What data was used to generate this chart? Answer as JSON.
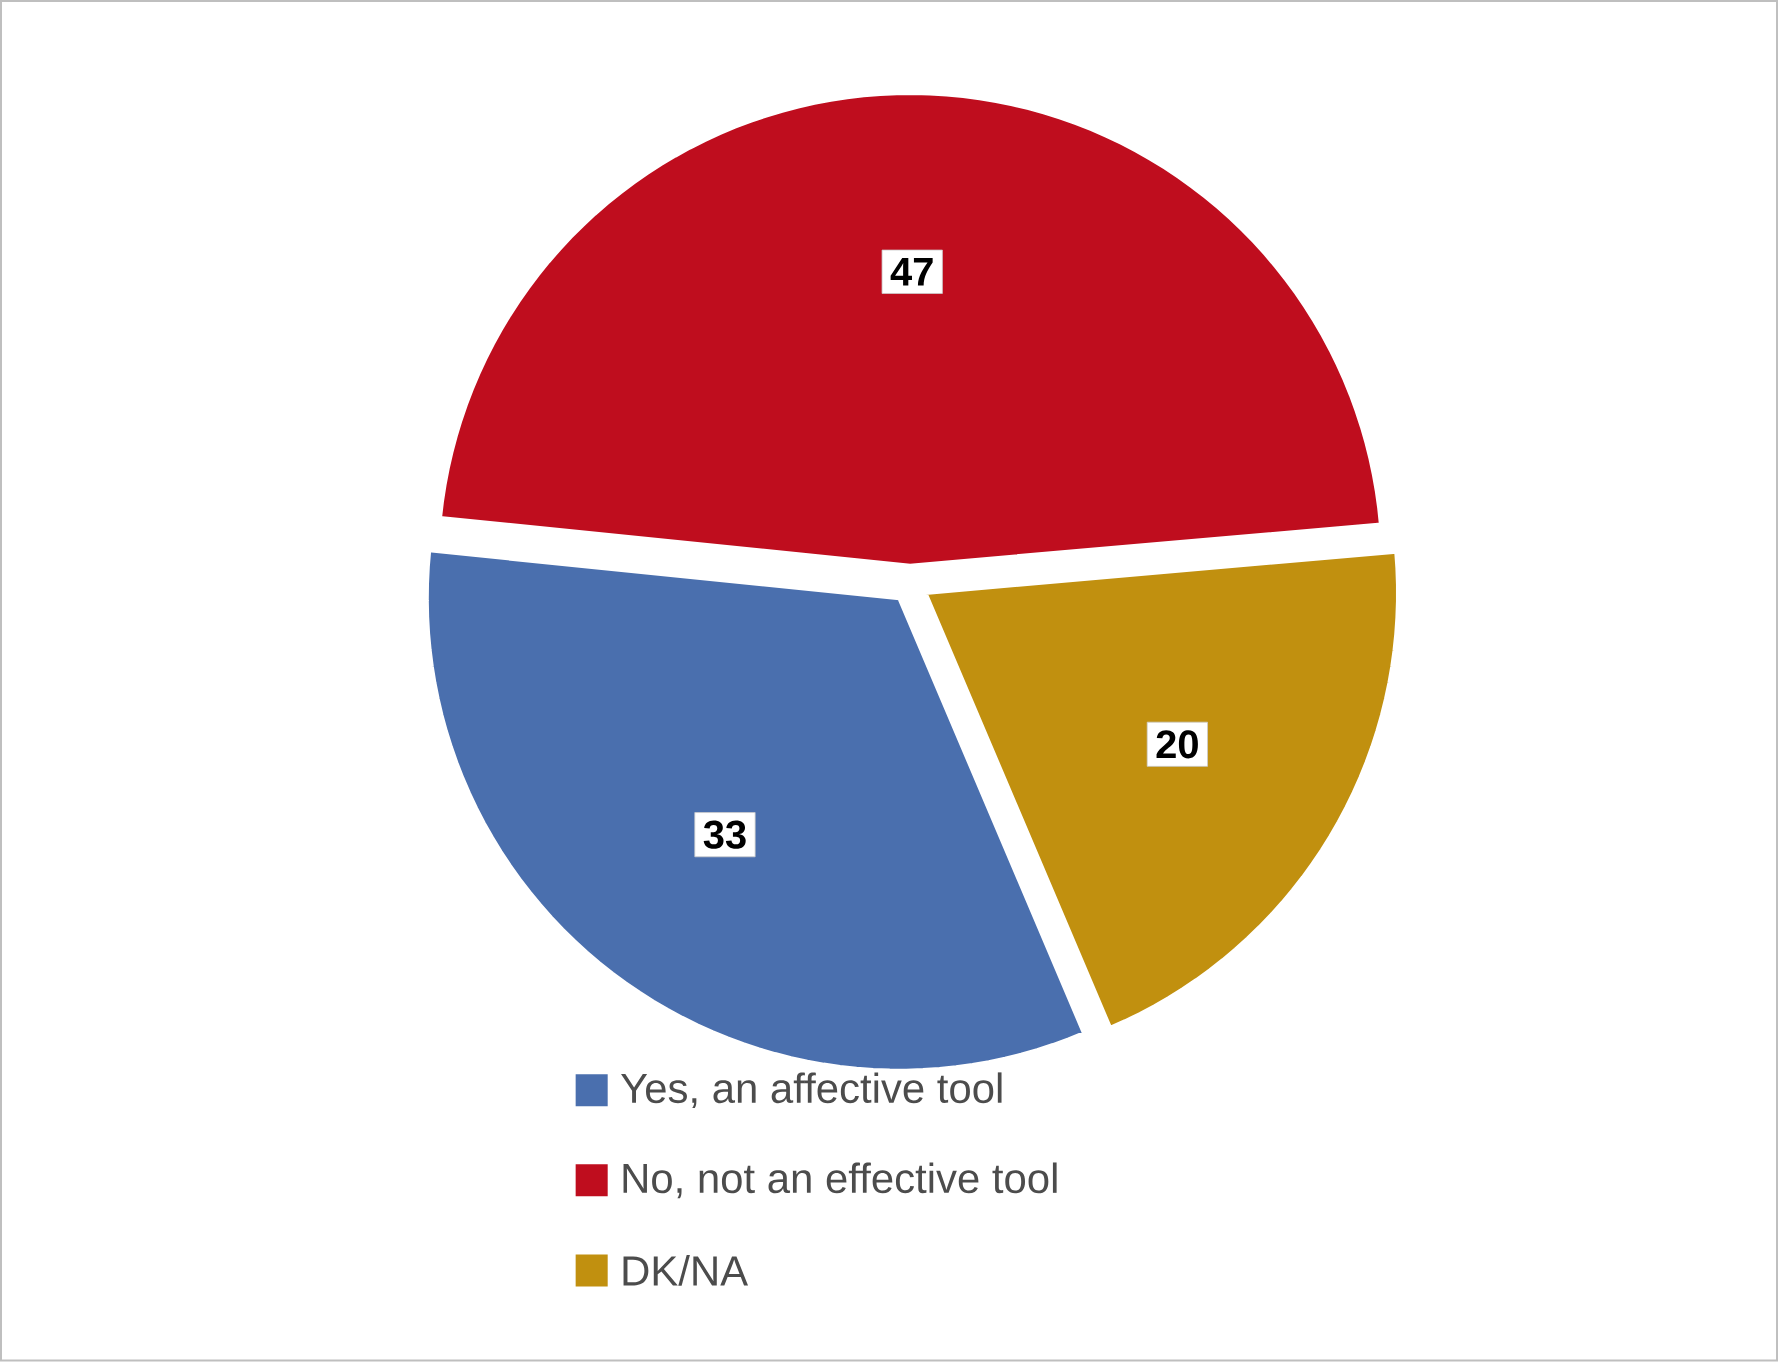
{
  "chart_data": {
    "type": "pie",
    "categories": [
      "Yes, an affective tool",
      "No, not an effective tool",
      "DK/NA"
    ],
    "values": [
      33,
      47,
      20
    ],
    "colors": [
      "#4a6fae",
      "#bf0d1e",
      "#c1900f"
    ],
    "data_labels": true,
    "legend": "bottom"
  }
}
